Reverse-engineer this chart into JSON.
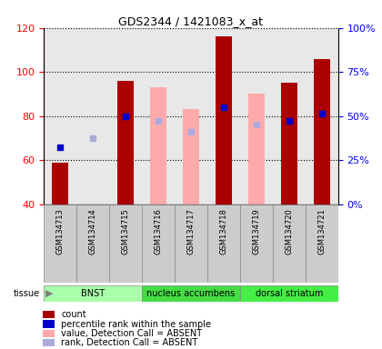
{
  "title": "GDS2344 / 1421083_x_at",
  "samples": [
    "GSM134713",
    "GSM134714",
    "GSM134715",
    "GSM134716",
    "GSM134717",
    "GSM134718",
    "GSM134719",
    "GSM134720",
    "GSM134721"
  ],
  "count_values": [
    59,
    null,
    96,
    null,
    null,
    116,
    null,
    95,
    106
  ],
  "count_absent": [
    null,
    null,
    null,
    93,
    83,
    null,
    90,
    null,
    null
  ],
  "rank_present": [
    66,
    null,
    80,
    null,
    null,
    84,
    null,
    78,
    81
  ],
  "rank_absent": [
    null,
    70,
    null,
    78,
    73,
    null,
    76,
    null,
    null
  ],
  "ylim": [
    40,
    120
  ],
  "yticks_left": [
    40,
    60,
    80,
    100,
    120
  ],
  "yticks_right": [
    0,
    25,
    50,
    75,
    100
  ],
  "ylabel_right_labels": [
    "0%",
    "25%",
    "50%",
    "75%",
    "100%"
  ],
  "bar_width": 0.5,
  "bar_color_count": "#aa0000",
  "bar_color_absent": "#ffaaaa",
  "dot_color_present": "#0000cc",
  "dot_color_absent": "#aaaadd",
  "col_bg_color": "#cccccc",
  "tissue_colors": [
    "#aaffaa",
    "#44dd44",
    "#44ee44"
  ],
  "tissue_labels": [
    "BNST",
    "nucleus accumbens",
    "dorsal striatum"
  ],
  "tissue_ranges": [
    [
      0,
      3
    ],
    [
      3,
      6
    ],
    [
      6,
      9
    ]
  ],
  "legend_items": [
    {
      "color": "#aa0000",
      "label": "count"
    },
    {
      "color": "#0000cc",
      "label": "percentile rank within the sample"
    },
    {
      "color": "#ffaaaa",
      "label": "value, Detection Call = ABSENT"
    },
    {
      "color": "#aaaadd",
      "label": "rank, Detection Call = ABSENT"
    }
  ]
}
